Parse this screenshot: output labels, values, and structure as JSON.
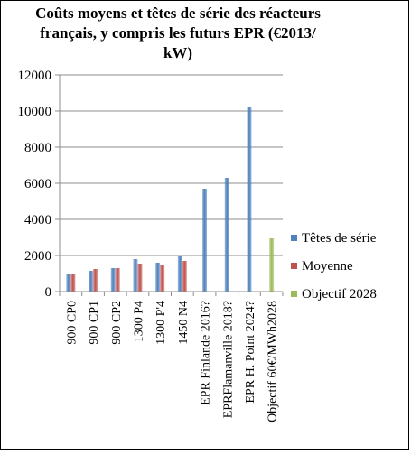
{
  "chart_data": {
    "type": "bar",
    "title_lines": [
      "Coûts moyens et têtes de série des réacteurs",
      "français, y compris les futurs EPR (€2013/",
      "kW)"
    ],
    "categories": [
      "900 CP0",
      "900 CP1",
      "900 CP2",
      "1300 P4",
      "1300 P'4",
      "1450 N4",
      "EPR Finlande 2016?",
      "EPRFlamanville 2018?",
      "EPR H. Point 2024?",
      "Objectif 60€/MWh2028"
    ],
    "series": [
      {
        "name": "Têtes de série",
        "color": "#4f81bd",
        "values": [
          950,
          1150,
          1300,
          1800,
          1600,
          1950,
          5700,
          6300,
          10200,
          null
        ]
      },
      {
        "name": "Moyenne",
        "color": "#c0504d",
        "values": [
          1000,
          1250,
          1300,
          1550,
          1450,
          1700,
          null,
          null,
          null,
          null
        ]
      },
      {
        "name": "Objectif 2028",
        "color": "#9bbb59",
        "values": [
          null,
          null,
          null,
          null,
          null,
          null,
          null,
          null,
          null,
          2950
        ]
      }
    ],
    "yticks": [
      0,
      2000,
      4000,
      6000,
      8000,
      10000,
      12000
    ],
    "ylim": [
      0,
      12000
    ],
    "grid": true,
    "legend": "right"
  }
}
